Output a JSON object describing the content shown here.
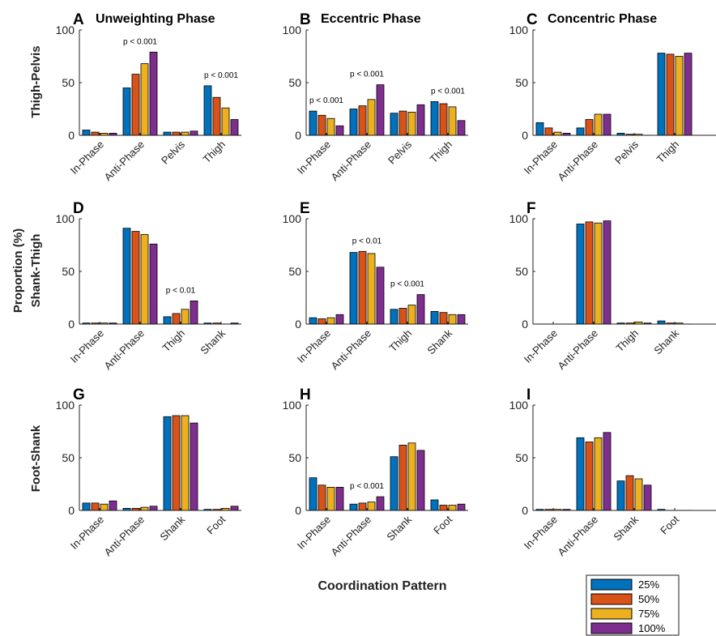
{
  "figure": {
    "xlabel": "Coordination Pattern",
    "ylabel_shared": "Proportion (%)",
    "row_labels": [
      "Thigh-Pelvis",
      "Shank-Thigh",
      "Foot-Shank"
    ],
    "column_titles": [
      "Unweighting Phase",
      "Eccentric Phase",
      "Concentric Phase"
    ],
    "series_colors": [
      "#0072BD",
      "#D95319",
      "#EDB120",
      "#7E2F8E"
    ]
  },
  "legend": {
    "entries": [
      "25%",
      "50%",
      "75%",
      "100%"
    ],
    "placement": "bottom-right, outside plots"
  },
  "chart_data": [
    {
      "panel": "A",
      "type": "bar",
      "title": "Unweighting Phase",
      "ylabel": "Thigh-Pelvis",
      "ylim": [
        0,
        100
      ],
      "yticks": [
        0,
        50,
        100
      ],
      "categories": [
        "In-Phase",
        "Anti-Phase",
        "Pelvis",
        "Thigh"
      ],
      "series": [
        {
          "name": "25%",
          "values": [
            5,
            45,
            3,
            47
          ]
        },
        {
          "name": "50%",
          "values": [
            3,
            58,
            3,
            36
          ]
        },
        {
          "name": "75%",
          "values": [
            2,
            68,
            3,
            26
          ]
        },
        {
          "name": "100%",
          "values": [
            2,
            79,
            4,
            15
          ]
        }
      ],
      "annotations": [
        {
          "category": "Anti-Phase",
          "text": "p < 0.001"
        },
        {
          "category": "Thigh",
          "text": "p < 0.001"
        }
      ]
    },
    {
      "panel": "B",
      "type": "bar",
      "title": "Eccentric Phase",
      "ylim": [
        0,
        100
      ],
      "yticks": [
        0,
        50,
        100
      ],
      "categories": [
        "In-Phase",
        "Anti-Phase",
        "Pelvis",
        "Thigh"
      ],
      "series": [
        {
          "name": "25%",
          "values": [
            23,
            25,
            21,
            32
          ]
        },
        {
          "name": "50%",
          "values": [
            19,
            28,
            23,
            30
          ]
        },
        {
          "name": "75%",
          "values": [
            16,
            34,
            22,
            27
          ]
        },
        {
          "name": "100%",
          "values": [
            9,
            48,
            29,
            14
          ]
        }
      ],
      "annotations": [
        {
          "category": "In-Phase",
          "text": "p < 0.001"
        },
        {
          "category": "Anti-Phase",
          "text": "p < 0.001"
        },
        {
          "category": "Thigh",
          "text": "p < 0.001"
        }
      ]
    },
    {
      "panel": "C",
      "type": "bar",
      "title": "Concentric Phase",
      "ylim": [
        0,
        100
      ],
      "yticks": [
        0,
        50,
        100
      ],
      "categories": [
        "In-Phase",
        "Anti-Phase",
        "Pelvis",
        "Thigh"
      ],
      "series": [
        {
          "name": "25%",
          "values": [
            12,
            7,
            2,
            78
          ]
        },
        {
          "name": "50%",
          "values": [
            7,
            15,
            1,
            77
          ]
        },
        {
          "name": "75%",
          "values": [
            3,
            20,
            1,
            75
          ]
        },
        {
          "name": "100%",
          "values": [
            2,
            20,
            0,
            78
          ]
        }
      ],
      "annotations": []
    },
    {
      "panel": "D",
      "type": "bar",
      "ylabel": "Shank-Thigh",
      "ylim": [
        0,
        100
      ],
      "yticks": [
        0,
        50,
        100
      ],
      "categories": [
        "In-Phase",
        "Anti-Phase",
        "Thigh",
        "Shank"
      ],
      "series": [
        {
          "name": "25%",
          "values": [
            1,
            91,
            7,
            1
          ]
        },
        {
          "name": "50%",
          "values": [
            1,
            88,
            10,
            1
          ]
        },
        {
          "name": "75%",
          "values": [
            1,
            85,
            14,
            0
          ]
        },
        {
          "name": "100%",
          "values": [
            1,
            76,
            22,
            1
          ]
        }
      ],
      "annotations": [
        {
          "category": "Thigh",
          "text": "p < 0.01"
        }
      ]
    },
    {
      "panel": "E",
      "type": "bar",
      "ylim": [
        0,
        100
      ],
      "yticks": [
        0,
        50,
        100
      ],
      "categories": [
        "In-Phase",
        "Anti-Phase",
        "Thigh",
        "Shank"
      ],
      "series": [
        {
          "name": "25%",
          "values": [
            6,
            68,
            14,
            12
          ]
        },
        {
          "name": "50%",
          "values": [
            5,
            69,
            15,
            11
          ]
        },
        {
          "name": "75%",
          "values": [
            6,
            67,
            18,
            9
          ]
        },
        {
          "name": "100%",
          "values": [
            9,
            54,
            28,
            9
          ]
        }
      ],
      "annotations": [
        {
          "category": "Anti-Phase",
          "text": "p < 0.01"
        },
        {
          "category": "Thigh",
          "text": "p < 0.001"
        }
      ]
    },
    {
      "panel": "F",
      "type": "bar",
      "ylim": [
        0,
        100
      ],
      "yticks": [
        0,
        50,
        100
      ],
      "categories": [
        "In-Phase",
        "Anti-Phase",
        "Thigh",
        "Shank"
      ],
      "series": [
        {
          "name": "25%",
          "values": [
            0,
            95,
            1,
            3
          ]
        },
        {
          "name": "50%",
          "values": [
            0,
            97,
            1,
            1
          ]
        },
        {
          "name": "75%",
          "values": [
            0,
            96,
            2,
            1
          ]
        },
        {
          "name": "100%",
          "values": [
            0,
            98,
            1,
            0
          ]
        }
      ],
      "annotations": []
    },
    {
      "panel": "G",
      "type": "bar",
      "ylabel": "Foot-Shank",
      "ylim": [
        0,
        100
      ],
      "yticks": [
        0,
        50,
        100
      ],
      "categories": [
        "In-Phase",
        "Anti-Phase",
        "Shank",
        "Foot"
      ],
      "series": [
        {
          "name": "25%",
          "values": [
            7,
            2,
            89,
            1
          ]
        },
        {
          "name": "50%",
          "values": [
            7,
            2,
            90,
            1
          ]
        },
        {
          "name": "75%",
          "values": [
            6,
            3,
            90,
            2
          ]
        },
        {
          "name": "100%",
          "values": [
            9,
            4,
            83,
            4
          ]
        }
      ],
      "annotations": []
    },
    {
      "panel": "H",
      "type": "bar",
      "ylim": [
        0,
        100
      ],
      "yticks": [
        0,
        50,
        100
      ],
      "categories": [
        "In-Phase",
        "Anti-Phase",
        "Shank",
        "Foot"
      ],
      "series": [
        {
          "name": "25%",
          "values": [
            31,
            6,
            51,
            10
          ]
        },
        {
          "name": "50%",
          "values": [
            24,
            7,
            62,
            5
          ]
        },
        {
          "name": "75%",
          "values": [
            22,
            8,
            64,
            5
          ]
        },
        {
          "name": "100%",
          "values": [
            22,
            13,
            57,
            6
          ]
        }
      ],
      "annotations": [
        {
          "category": "Anti-Phase",
          "text": "p < 0.001"
        }
      ]
    },
    {
      "panel": "I",
      "type": "bar",
      "ylim": [
        0,
        100
      ],
      "yticks": [
        0,
        50,
        100
      ],
      "categories": [
        "In-Phase",
        "Anti-Phase",
        "Shank",
        "Foot"
      ],
      "series": [
        {
          "name": "25%",
          "values": [
            1,
            69,
            28,
            1
          ]
        },
        {
          "name": "50%",
          "values": [
            1,
            65,
            33,
            0
          ]
        },
        {
          "name": "75%",
          "values": [
            1,
            69,
            30,
            0
          ]
        },
        {
          "name": "100%",
          "values": [
            1,
            74,
            24,
            0
          ]
        }
      ],
      "annotations": []
    }
  ]
}
